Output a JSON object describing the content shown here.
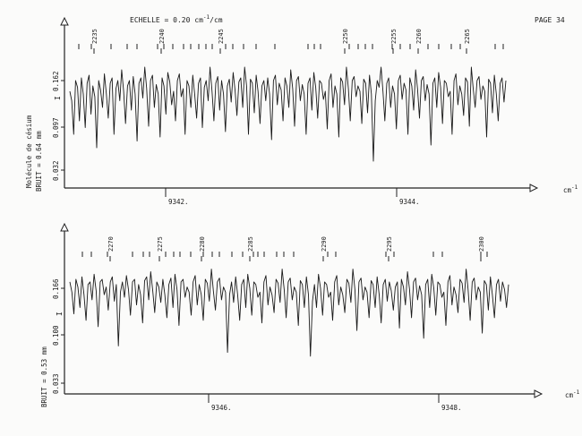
{
  "header": {
    "scale_label": "ECHELLE = 0.20 cm",
    "scale_exp": "-1",
    "scale_suffix": "/cm",
    "page_label": "PAGE 34"
  },
  "chart_data": [
    {
      "type": "line",
      "ylabel": "I",
      "ylabel_side": "Molécule de césium",
      "noise_label": "BRUIT = 0.64 mm",
      "x_unit": "cm",
      "x_unit_exp": "-1",
      "y_ticks": [
        "0.032",
        "0.097",
        "0.162"
      ],
      "x_ticks": [
        "9342.",
        "9344."
      ],
      "line_numbers": [
        "2235",
        "2240",
        "2245",
        "2250",
        "2255",
        "2260",
        "2265"
      ],
      "series": [
        {
          "values": [
            0.62,
            0.55,
            0.3,
            0.7,
            0.65,
            0.4,
            0.72,
            0.6,
            0.35,
            0.68,
            0.74,
            0.45,
            0.66,
            0.58,
            0.2,
            0.7,
            0.63,
            0.5,
            0.75,
            0.6,
            0.42,
            0.68,
            0.72,
            0.3,
            0.64,
            0.7,
            0.55,
            0.78,
            0.62,
            0.38,
            0.66,
            0.7,
            0.48,
            0.73,
            0.6,
            0.25,
            0.68,
            0.72,
            0.57,
            0.8,
            0.64,
            0.36,
            0.7,
            0.74,
            0.5,
            0.67,
            0.6,
            0.28,
            0.72,
            0.66,
            0.45,
            0.76,
            0.69,
            0.52,
            0.62,
            0.4,
            0.7,
            0.75,
            0.58,
            0.64,
            0.3,
            0.7,
            0.66,
            0.5,
            0.74,
            0.6,
            0.42,
            0.68,
            0.72,
            0.35,
            0.65,
            0.7,
            0.55,
            0.8,
            0.62,
            0.4,
            0.68,
            0.73,
            0.48,
            0.7,
            0.6,
            0.32,
            0.66,
            0.71,
            0.54,
            0.76,
            0.63,
            0.44,
            0.69,
            0.72,
            0.5,
            0.8,
            0.66,
            0.3,
            0.71,
            0.68,
            0.46,
            0.74,
            0.62,
            0.38,
            0.66,
            0.7,
            0.55,
            0.72,
            0.6,
            0.26,
            0.7,
            0.74,
            0.52,
            0.68,
            0.63,
            0.4,
            0.72,
            0.66,
            0.5,
            0.78,
            0.64,
            0.36,
            0.7,
            0.73,
            0.55,
            0.67,
            0.6,
            0.3,
            0.68,
            0.72,
            0.48,
            0.76,
            0.65,
            0.42,
            0.7,
            0.68,
            0.56,
            0.62,
            0.34,
            0.7,
            0.75,
            0.5,
            0.66,
            0.6,
            0.28,
            0.72,
            0.69,
            0.52,
            0.8,
            0.64,
            0.4,
            0.7,
            0.73,
            0.58,
            0.66,
            0.62,
            0.38,
            0.71,
            0.68,
            0.46,
            0.74,
            0.6,
            0.1,
            0.55,
            0.7,
            0.65,
            0.8,
            0.62,
            0.4,
            0.68,
            0.72,
            0.5,
            0.66,
            0.6,
            0.34,
            0.7,
            0.74,
            0.56,
            0.68,
            0.63,
            0.3,
            0.72,
            0.66,
            0.48,
            0.78,
            0.64,
            0.42,
            0.7,
            0.73,
            0.55,
            0.67,
            0.6,
            0.22,
            0.68,
            0.72,
            0.5,
            0.76,
            0.65,
            0.38,
            0.7,
            0.68,
            0.58,
            0.62,
            0.3,
            0.7,
            0.75,
            0.52,
            0.66,
            0.6,
            0.44,
            0.72,
            0.69,
            0.36,
            0.8,
            0.64,
            0.5,
            0.7,
            0.73,
            0.56,
            0.66,
            0.62,
            0.28,
            0.71,
            0.68,
            0.46,
            0.74,
            0.6,
            0.4,
            0.68,
            0.72,
            0.54,
            0.7
          ]
        }
      ]
    },
    {
      "type": "line",
      "ylabel": "I",
      "noise_label": "BRUIT = 0.53 mm",
      "x_unit": "cm",
      "x_unit_exp": "-1",
      "y_ticks": [
        "0.033",
        "0.100",
        "0.166"
      ],
      "x_ticks": [
        "9346.",
        "9348."
      ],
      "line_numbers": [
        "2270",
        "2275",
        "2280",
        "2285",
        "2290",
        "2295",
        "2300"
      ],
      "series": [
        {
          "values": [
            0.7,
            0.62,
            0.45,
            0.72,
            0.66,
            0.5,
            0.74,
            0.6,
            0.4,
            0.68,
            0.7,
            0.56,
            0.76,
            0.63,
            0.35,
            0.7,
            0.72,
            0.6,
            0.66,
            0.48,
            0.7,
            0.74,
            0.55,
            0.68,
            0.2,
            0.62,
            0.7,
            0.58,
            0.75,
            0.64,
            0.44,
            0.7,
            0.72,
            0.52,
            0.68,
            0.6,
            0.38,
            0.71,
            0.74,
            0.56,
            0.78,
            0.63,
            0.46,
            0.7,
            0.66,
            0.54,
            0.72,
            0.6,
            0.42,
            0.68,
            0.73,
            0.5,
            0.76,
            0.64,
            0.36,
            0.7,
            0.72,
            0.58,
            0.66,
            0.62,
            0.44,
            0.7,
            0.75,
            0.52,
            0.68,
            0.6,
            0.4,
            0.72,
            0.69,
            0.55,
            0.8,
            0.63,
            0.48,
            0.7,
            0.73,
            0.56,
            0.66,
            0.62,
            0.15,
            0.6,
            0.7,
            0.54,
            0.74,
            0.6,
            0.4,
            0.68,
            0.72,
            0.5,
            0.76,
            0.65,
            0.44,
            0.7,
            0.68,
            0.58,
            0.62,
            0.38,
            0.7,
            0.75,
            0.52,
            0.66,
            0.6,
            0.46,
            0.72,
            0.69,
            0.54,
            0.8,
            0.64,
            0.42,
            0.7,
            0.73,
            0.56,
            0.66,
            0.62,
            0.36,
            0.71,
            0.68,
            0.5,
            0.74,
            0.6,
            0.12,
            0.55,
            0.68,
            0.5,
            0.76,
            0.65,
            0.44,
            0.7,
            0.68,
            0.58,
            0.62,
            0.4,
            0.7,
            0.75,
            0.52,
            0.66,
            0.6,
            0.46,
            0.72,
            0.69,
            0.54,
            0.8,
            0.64,
            0.32,
            0.7,
            0.73,
            0.56,
            0.66,
            0.62,
            0.42,
            0.71,
            0.68,
            0.5,
            0.74,
            0.6,
            0.38,
            0.68,
            0.72,
            0.55,
            0.7,
            0.63,
            0.48,
            0.66,
            0.7,
            0.34,
            0.72,
            0.66,
            0.52,
            0.78,
            0.64,
            0.42,
            0.7,
            0.73,
            0.56,
            0.67,
            0.6,
            0.26,
            0.68,
            0.72,
            0.5,
            0.76,
            0.65,
            0.44,
            0.7,
            0.68,
            0.58,
            0.62,
            0.36,
            0.7,
            0.75,
            0.52,
            0.66,
            0.6,
            0.46,
            0.72,
            0.69,
            0.54,
            0.8,
            0.64,
            0.4,
            0.7,
            0.73,
            0.56,
            0.66,
            0.62,
            0.3,
            0.71,
            0.68,
            0.48,
            0.74,
            0.6,
            0.42,
            0.68,
            0.72,
            0.55,
            0.7,
            0.64,
            0.5,
            0.68
          ]
        }
      ]
    }
  ]
}
